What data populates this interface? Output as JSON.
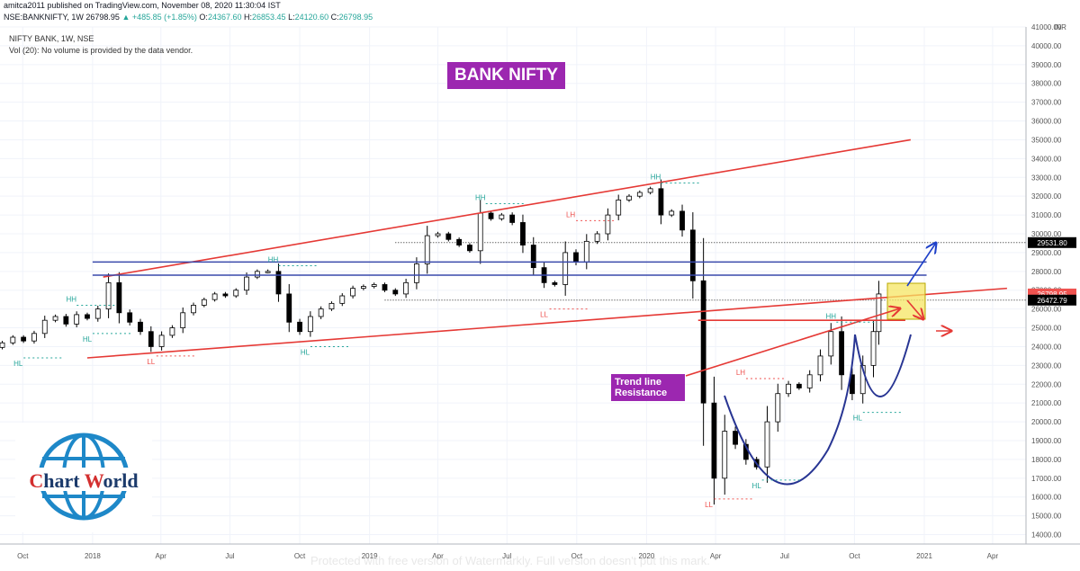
{
  "header": {
    "line1": "amitca2011 published on TradingView.com, November 08, 2020 11:30:04 IST",
    "symbol": "NSE:BANKNIFTY, 1W",
    "last": "26798.95",
    "change": "▲ +485.85 (+1.85%)",
    "open_label": "O:",
    "open": "24367.60",
    "high_label": "H:",
    "high": "26853.45",
    "low_label": "L:",
    "low": "24120.60",
    "close_label": "C:",
    "close": "26798.95"
  },
  "legend": {
    "line1": "NIFTY BANK, 1W, NSE",
    "line2": "Vol (20): No volume is provided by the data vendor."
  },
  "annotations": {
    "title": "BANK NIFTY",
    "trend_line1": "Trend line",
    "trend_line2": "Resistance"
  },
  "logo": {
    "word1_first": "C",
    "word1_rest": "hart ",
    "word2_first": "W",
    "word2_rest": "orld"
  },
  "watermark": "Protected with free version of Watermarkly. Full version doesn't put this mark.",
  "colors": {
    "up": "#26a69a",
    "down": "#ef5350",
    "candle": "#000000",
    "resistance": "#e53935",
    "support_box": "#3949ab",
    "pattern": "#283593",
    "purple": "#9c27b0",
    "highlight": "#f5e663"
  },
  "chart_data": {
    "type": "candlestick",
    "title": "NIFTY BANK, 1W, NSE",
    "currency": "INR",
    "ylim": [
      13500,
      41000
    ],
    "y_ticks": [
      14000,
      15000,
      16000,
      17000,
      18000,
      19000,
      20000,
      21000,
      22000,
      23000,
      24000,
      25000,
      26000,
      27000,
      28000,
      29000,
      30000,
      31000,
      32000,
      33000,
      34000,
      35000,
      36000,
      37000,
      38000,
      39000,
      40000,
      41000
    ],
    "x_ticks": [
      {
        "label": "Oct",
        "date": "2017-10-01"
      },
      {
        "label": "2018",
        "date": "2018-01-01"
      },
      {
        "label": "Apr",
        "date": "2018-04-01"
      },
      {
        "label": "Jul",
        "date": "2018-07-01"
      },
      {
        "label": "Oct",
        "date": "2018-10-01"
      },
      {
        "label": "2019",
        "date": "2019-01-01"
      },
      {
        "label": "Apr",
        "date": "2019-04-01"
      },
      {
        "label": "Jul",
        "date": "2019-07-01"
      },
      {
        "label": "Oct",
        "date": "2019-10-01"
      },
      {
        "label": "2020",
        "date": "2020-01-01"
      },
      {
        "label": "Apr",
        "date": "2020-04-01"
      },
      {
        "label": "Jul",
        "date": "2020-07-01"
      },
      {
        "label": "Oct",
        "date": "2020-10-01"
      },
      {
        "label": "2021",
        "date": "2021-01-01"
      },
      {
        "label": "Apr",
        "date": "2021-04-01"
      }
    ],
    "price_labels": [
      {
        "text": "29531.80",
        "value": 29531.8,
        "bg": "#000000"
      },
      {
        "text": "26798.95",
        "value": 26798.95,
        "bg": "#ef5350"
      },
      {
        "text": "26472.79",
        "value": 26472.79,
        "bg": "#000000"
      }
    ],
    "closes": [
      {
        "date": "2017-09-04",
        "v": 24200
      },
      {
        "date": "2017-09-18",
        "v": 24500
      },
      {
        "date": "2017-10-02",
        "v": 24300
      },
      {
        "date": "2017-10-16",
        "v": 24700
      },
      {
        "date": "2017-10-30",
        "v": 25400
      },
      {
        "date": "2017-11-13",
        "v": 25600
      },
      {
        "date": "2017-11-27",
        "v": 25200
      },
      {
        "date": "2017-12-11",
        "v": 25700
      },
      {
        "date": "2017-12-25",
        "v": 25500
      },
      {
        "date": "2018-01-08",
        "v": 26000
      },
      {
        "date": "2018-01-22",
        "v": 27400
      },
      {
        "date": "2018-02-05",
        "v": 25800
      },
      {
        "date": "2018-02-19",
        "v": 25300
      },
      {
        "date": "2018-03-05",
        "v": 24800
      },
      {
        "date": "2018-03-19",
        "v": 24000
      },
      {
        "date": "2018-04-02",
        "v": 24600
      },
      {
        "date": "2018-04-16",
        "v": 25000
      },
      {
        "date": "2018-04-30",
        "v": 25800
      },
      {
        "date": "2018-05-14",
        "v": 26200
      },
      {
        "date": "2018-05-28",
        "v": 26500
      },
      {
        "date": "2018-06-11",
        "v": 26800
      },
      {
        "date": "2018-06-25",
        "v": 26700
      },
      {
        "date": "2018-07-09",
        "v": 27000
      },
      {
        "date": "2018-07-23",
        "v": 27700
      },
      {
        "date": "2018-08-06",
        "v": 28000
      },
      {
        "date": "2018-08-20",
        "v": 28000
      },
      {
        "date": "2018-09-03",
        "v": 26800
      },
      {
        "date": "2018-09-17",
        "v": 25300
      },
      {
        "date": "2018-10-01",
        "v": 24800
      },
      {
        "date": "2018-10-15",
        "v": 25600
      },
      {
        "date": "2018-10-29",
        "v": 26000
      },
      {
        "date": "2018-11-12",
        "v": 26300
      },
      {
        "date": "2018-11-26",
        "v": 26700
      },
      {
        "date": "2018-12-10",
        "v": 27100
      },
      {
        "date": "2018-12-24",
        "v": 27200
      },
      {
        "date": "2019-01-07",
        "v": 27300
      },
      {
        "date": "2019-01-21",
        "v": 27000
      },
      {
        "date": "2019-02-04",
        "v": 26800
      },
      {
        "date": "2019-02-18",
        "v": 27400
      },
      {
        "date": "2019-03-04",
        "v": 28400
      },
      {
        "date": "2019-03-18",
        "v": 29900
      },
      {
        "date": "2019-04-01",
        "v": 30000
      },
      {
        "date": "2019-04-15",
        "v": 29700
      },
      {
        "date": "2019-04-29",
        "v": 29400
      },
      {
        "date": "2019-05-13",
        "v": 29100
      },
      {
        "date": "2019-05-27",
        "v": 31100
      },
      {
        "date": "2019-06-10",
        "v": 30800
      },
      {
        "date": "2019-06-24",
        "v": 31000
      },
      {
        "date": "2019-07-08",
        "v": 30600
      },
      {
        "date": "2019-07-22",
        "v": 29400
      },
      {
        "date": "2019-08-05",
        "v": 28200
      },
      {
        "date": "2019-08-19",
        "v": 27400
      },
      {
        "date": "2019-09-02",
        "v": 27300
      },
      {
        "date": "2019-09-16",
        "v": 29000
      },
      {
        "date": "2019-09-30",
        "v": 28500
      },
      {
        "date": "2019-10-14",
        "v": 29600
      },
      {
        "date": "2019-10-28",
        "v": 30000
      },
      {
        "date": "2019-11-11",
        "v": 31000
      },
      {
        "date": "2019-11-25",
        "v": 31800
      },
      {
        "date": "2019-12-09",
        "v": 32000
      },
      {
        "date": "2019-12-23",
        "v": 32200
      },
      {
        "date": "2020-01-06",
        "v": 32400
      },
      {
        "date": "2020-01-20",
        "v": 31000
      },
      {
        "date": "2020-02-03",
        "v": 31200
      },
      {
        "date": "2020-02-17",
        "v": 30200
      },
      {
        "date": "2020-03-02",
        "v": 27500
      },
      {
        "date": "2020-03-16",
        "v": 21000
      },
      {
        "date": "2020-03-30",
        "v": 17000
      },
      {
        "date": "2020-04-13",
        "v": 19500
      },
      {
        "date": "2020-04-27",
        "v": 18800
      },
      {
        "date": "2020-05-11",
        "v": 18000
      },
      {
        "date": "2020-05-25",
        "v": 17600
      },
      {
        "date": "2020-06-08",
        "v": 20000
      },
      {
        "date": "2020-06-22",
        "v": 21500
      },
      {
        "date": "2020-07-06",
        "v": 22000
      },
      {
        "date": "2020-07-20",
        "v": 21800
      },
      {
        "date": "2020-08-03",
        "v": 22500
      },
      {
        "date": "2020-08-17",
        "v": 23500
      },
      {
        "date": "2020-08-31",
        "v": 24800
      },
      {
        "date": "2020-09-14",
        "v": 22500
      },
      {
        "date": "2020-09-28",
        "v": 21500
      },
      {
        "date": "2020-10-12",
        "v": 23000
      },
      {
        "date": "2020-10-26",
        "v": 24800
      },
      {
        "date": "2020-11-02",
        "v": 26799
      }
    ],
    "swing_labels": [
      {
        "text": "HL",
        "date": "2017-09-25",
        "v": 23400,
        "pos": "below",
        "color": "up"
      },
      {
        "text": "HH",
        "date": "2017-12-04",
        "v": 26200,
        "pos": "above",
        "color": "up"
      },
      {
        "text": "HL",
        "date": "2017-12-25",
        "v": 24700,
        "pos": "below",
        "color": "up"
      },
      {
        "text": "LL",
        "date": "2018-03-19",
        "v": 23500,
        "pos": "below",
        "color": "down"
      },
      {
        "text": "HH",
        "date": "2018-08-27",
        "v": 28300,
        "pos": "above",
        "color": "up"
      },
      {
        "text": "HL",
        "date": "2018-10-08",
        "v": 24000,
        "pos": "below",
        "color": "up"
      },
      {
        "text": "HH",
        "date": "2019-05-27",
        "v": 31600,
        "pos": "above",
        "color": "up"
      },
      {
        "text": "LH",
        "date": "2019-09-23",
        "v": 30700,
        "pos": "above",
        "color": "down"
      },
      {
        "text": "LL",
        "date": "2019-08-19",
        "v": 26000,
        "pos": "below",
        "color": "down"
      },
      {
        "text": "HH",
        "date": "2020-01-13",
        "v": 32700,
        "pos": "above",
        "color": "up"
      },
      {
        "text": "LL",
        "date": "2020-03-23",
        "v": 15900,
        "pos": "below",
        "color": "down"
      },
      {
        "text": "LH",
        "date": "2020-05-04",
        "v": 22300,
        "pos": "above",
        "color": "down"
      },
      {
        "text": "HL",
        "date": "2020-05-25",
        "v": 16900,
        "pos": "below",
        "color": "up"
      },
      {
        "text": "HH",
        "date": "2020-08-31",
        "v": 25300,
        "pos": "above",
        "color": "up"
      },
      {
        "text": "HL",
        "date": "2020-10-05",
        "v": 20500,
        "pos": "below",
        "color": "up"
      }
    ],
    "lines": [
      {
        "name": "upper channel",
        "color": "resistance",
        "from": {
          "date": "2018-01-15",
          "v": 27700
        },
        "to": {
          "date": "2020-12-14",
          "v": 35000
        }
      },
      {
        "name": "lower channel",
        "color": "resistance",
        "from": {
          "date": "2017-12-25",
          "v": 23400
        },
        "to": {
          "date": "2021-04-20",
          "v": 27100
        }
      },
      {
        "name": "support top",
        "color": "support_box",
        "from": {
          "date": "2018-01-01",
          "v": 28500
        },
        "to": {
          "date": "2021-01-04",
          "v": 28500
        }
      },
      {
        "name": "support bottom",
        "color": "support_box",
        "from": {
          "date": "2018-01-01",
          "v": 27800
        },
        "to": {
          "date": "2021-01-04",
          "v": 27800
        }
      },
      {
        "name": "neckline",
        "color": "resistance",
        "from": {
          "date": "2020-03-09",
          "v": 25400
        },
        "to": {
          "date": "2020-12-07",
          "v": 25400
        }
      }
    ],
    "ref_levels": [
      {
        "v": 29531.8,
        "from": "2019-02-04",
        "style": "dotted"
      },
      {
        "v": 26472.79,
        "from": "2019-01-21",
        "style": "dotted"
      }
    ]
  }
}
